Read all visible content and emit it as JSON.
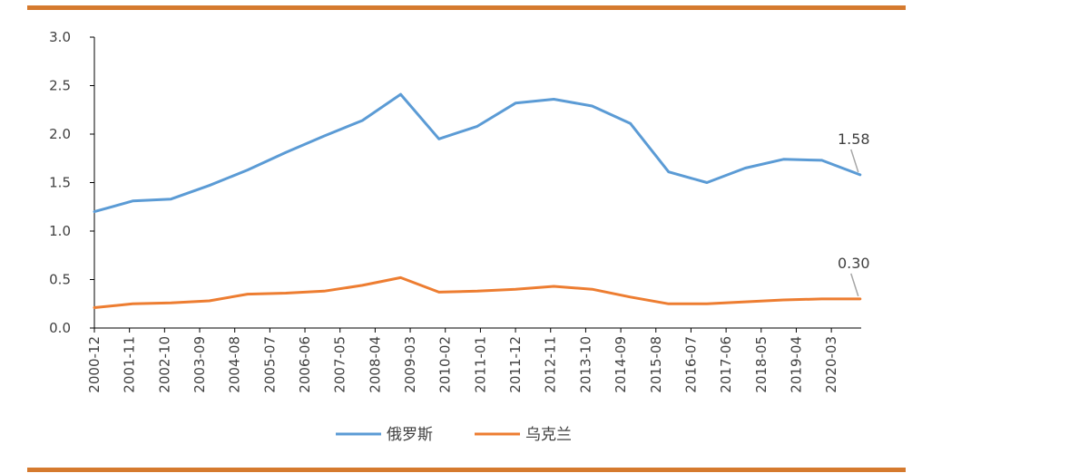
{
  "colors": {
    "rule": "#d57a2e",
    "axis": "#000000",
    "series_russia": "#5b9bd5",
    "series_ukraine": "#ed7d31",
    "leader": "#a6a6a6"
  },
  "chart_data": {
    "type": "line",
    "title": "",
    "xlabel": "",
    "ylabel": "",
    "ylim": [
      0,
      3.0
    ],
    "y_ticks": [
      "0.0",
      "0.5",
      "1.0",
      "1.5",
      "2.0",
      "2.5",
      "3.0"
    ],
    "x_tick_labels": [
      "2000-12",
      "2001-11",
      "2002-10",
      "2003-09",
      "2004-08",
      "2005-07",
      "2006-06",
      "2007-05",
      "2008-04",
      "2009-03",
      "2010-02",
      "2011-01",
      "2011-12",
      "2012-11",
      "2013-10",
      "2014-09",
      "2015-08",
      "2016-07",
      "2017-06",
      "2018-05",
      "2019-04",
      "2020-03"
    ],
    "x_months": [
      "2000-12",
      "2001-12",
      "2002-12",
      "2003-12",
      "2004-12",
      "2005-12",
      "2006-12",
      "2007-12",
      "2008-12",
      "2009-12",
      "2010-12",
      "2011-12",
      "2012-12",
      "2013-12",
      "2014-12",
      "2015-12",
      "2016-12",
      "2017-12",
      "2018-12",
      "2019-12",
      "2020-12"
    ],
    "grid": false,
    "legend_position": "bottom",
    "series": [
      {
        "name": "俄罗斯",
        "color": "#5b9bd5",
        "values": [
          1.2,
          1.31,
          1.33,
          1.47,
          1.63,
          1.81,
          1.98,
          2.14,
          2.41,
          1.95,
          2.08,
          2.32,
          2.36,
          2.29,
          2.11,
          1.61,
          1.5,
          1.65,
          1.74,
          1.73,
          1.58
        ]
      },
      {
        "name": "乌克兰",
        "color": "#ed7d31",
        "values": [
          0.21,
          0.25,
          0.26,
          0.28,
          0.35,
          0.36,
          0.38,
          0.44,
          0.52,
          0.37,
          0.38,
          0.4,
          0.43,
          0.4,
          0.32,
          0.25,
          0.25,
          0.27,
          0.29,
          0.3,
          0.3
        ]
      }
    ],
    "annotations": [
      {
        "text": "1.58",
        "series": 0
      },
      {
        "text": "0.30",
        "series": 1
      }
    ]
  }
}
